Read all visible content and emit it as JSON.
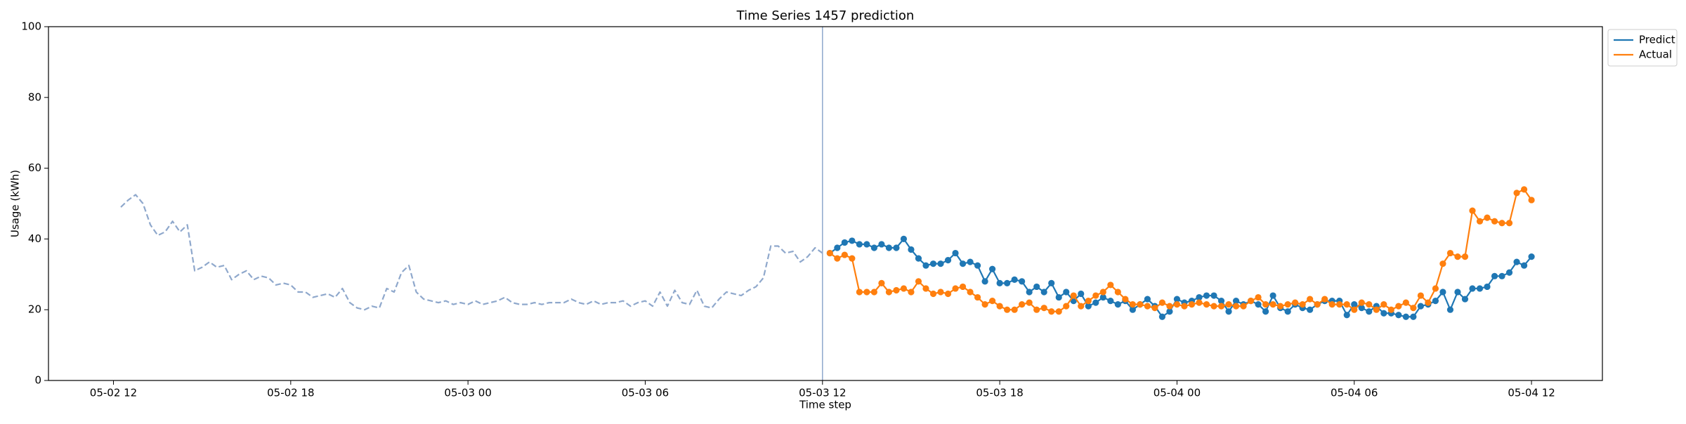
{
  "chart_data": {
    "type": "line",
    "title": "Time Series 1457 prediction",
    "x_label": "Time step",
    "y_label": "Usage (kWh)",
    "xlim": [
      9.8,
      62.4
    ],
    "xticks": [
      {
        "value": 12,
        "label": "05-02 12"
      },
      {
        "value": 18,
        "label": "05-02 18"
      },
      {
        "value": 24,
        "label": "05-03 00"
      },
      {
        "value": 30,
        "label": "05-03 06"
      },
      {
        "value": 36,
        "label": "05-03 12"
      },
      {
        "value": 42,
        "label": "05-03 18"
      },
      {
        "value": 48,
        "label": "05-04 00"
      },
      {
        "value": 54,
        "label": "05-04 06"
      },
      {
        "value": 60,
        "label": "05-04 12"
      }
    ],
    "ylim": [
      0,
      100
    ],
    "yticks": [
      0,
      20,
      40,
      60,
      80,
      100
    ],
    "grid": false,
    "vline": {
      "x": 36,
      "color": "#8fa8cc"
    },
    "legend": "outside-upper-right",
    "series": [
      {
        "color": "#8fa8cc",
        "style": "dashed",
        "markers": false,
        "x": [
          12.25,
          12.5,
          12.75,
          13,
          13.25,
          13.5,
          13.75,
          14,
          14.25,
          14.5,
          14.75,
          15,
          15.25,
          15.5,
          15.75,
          16,
          16.25,
          16.5,
          16.75,
          17,
          17.25,
          17.5,
          17.75,
          18,
          18.25,
          18.5,
          18.75,
          19,
          19.25,
          19.5,
          19.75,
          20,
          20.25,
          20.5,
          20.75,
          21,
          21.25,
          21.5,
          21.75,
          22,
          22.25,
          22.5,
          22.75,
          23,
          23.25,
          23.5,
          23.75,
          24,
          24.25,
          24.5,
          24.75,
          25,
          25.25,
          25.5,
          25.75,
          26,
          26.25,
          26.5,
          26.75,
          27,
          27.25,
          27.5,
          27.75,
          28,
          28.25,
          28.5,
          28.75,
          29,
          29.25,
          29.5,
          29.75,
          30,
          30.25,
          30.5,
          30.75,
          31,
          31.25,
          31.5,
          31.75,
          32,
          32.25,
          32.5,
          32.75,
          33,
          33.25,
          33.5,
          33.75,
          34,
          34.25,
          34.5,
          34.75,
          35,
          35.25,
          35.5,
          35.75,
          36
        ],
        "values": [
          49,
          51,
          52.5,
          50,
          44,
          41,
          42,
          45,
          42,
          44,
          31,
          32,
          33.5,
          32,
          32.5,
          28.5,
          30,
          31,
          28.5,
          29.5,
          29,
          27,
          27.5,
          27,
          25,
          25,
          23.5,
          24,
          24.5,
          23.5,
          26,
          22,
          20.5,
          20,
          21,
          20.5,
          26,
          25,
          30.5,
          32.5,
          25,
          23,
          22.5,
          22,
          22.5,
          21.5,
          22,
          21.5,
          22.5,
          21.5,
          22,
          22.5,
          23.5,
          22,
          21.5,
          21.5,
          22,
          21.5,
          22,
          22,
          22,
          23,
          22,
          21.5,
          22.5,
          21.5,
          22,
          22,
          22.5,
          21,
          22,
          22.5,
          21,
          25,
          21,
          25.5,
          22,
          21.5,
          25.5,
          21,
          20.5,
          23,
          25,
          24.5,
          24,
          25.5,
          26.5,
          29,
          38,
          38,
          36,
          36.5,
          33.5,
          35,
          37.5,
          36
        ]
      },
      {
        "name": "Predict",
        "color": "#1f77b4",
        "style": "solid",
        "markers": true,
        "x": [
          36.25,
          36.5,
          36.75,
          37,
          37.25,
          37.5,
          37.75,
          38,
          38.25,
          38.5,
          38.75,
          39,
          39.25,
          39.5,
          39.75,
          40,
          40.25,
          40.5,
          40.75,
          41,
          41.25,
          41.5,
          41.75,
          42,
          42.25,
          42.5,
          42.75,
          43,
          43.25,
          43.5,
          43.75,
          44,
          44.25,
          44.5,
          44.75,
          45,
          45.25,
          45.5,
          45.75,
          46,
          46.25,
          46.5,
          46.75,
          47,
          47.25,
          47.5,
          47.75,
          48,
          48.25,
          48.5,
          48.75,
          49,
          49.25,
          49.5,
          49.75,
          50,
          50.25,
          50.5,
          50.75,
          51,
          51.25,
          51.5,
          51.75,
          52,
          52.25,
          52.5,
          52.75,
          53,
          53.25,
          53.5,
          53.75,
          54,
          54.25,
          54.5,
          54.75,
          55,
          55.25,
          55.5,
          55.75,
          56,
          56.25,
          56.5,
          56.75,
          57,
          57.25,
          57.5,
          57.75,
          58,
          58.25,
          58.5,
          58.75,
          59,
          59.25,
          59.5,
          59.75,
          60
        ],
        "values": [
          36,
          37.5,
          39,
          39.5,
          38.5,
          38.5,
          37.5,
          38.5,
          37.5,
          37.5,
          40,
          37,
          34.5,
          32.5,
          33,
          33,
          34,
          36,
          33,
          33.5,
          32.5,
          28,
          31.5,
          27.5,
          27.5,
          28.5,
          28,
          25,
          26.5,
          25,
          27.5,
          23.5,
          25,
          22.5,
          24.5,
          21,
          22,
          23.5,
          22.5,
          21.5,
          22.5,
          20,
          21.5,
          23,
          21,
          18,
          19.5,
          23,
          22,
          22.5,
          23.5,
          24,
          24,
          22.5,
          19.5,
          22.5,
          21.5,
          22.5,
          21.5,
          19.5,
          24,
          20.5,
          19.5,
          21.5,
          20.5,
          20,
          21.5,
          22.5,
          22.5,
          22.5,
          18.5,
          21.5,
          20.5,
          19.5,
          21,
          19,
          19,
          18.5,
          18,
          18,
          21,
          21.5,
          22.5,
          25,
          20,
          25,
          23,
          26,
          26,
          26.5,
          29.5,
          29.5,
          30.5,
          33.5,
          32.5,
          35
        ]
      },
      {
        "name": "Actual",
        "color": "#ff7f0e",
        "style": "solid",
        "markers": true,
        "x": [
          36.25,
          36.5,
          36.75,
          37,
          37.25,
          37.5,
          37.75,
          38,
          38.25,
          38.5,
          38.75,
          39,
          39.25,
          39.5,
          39.75,
          40,
          40.25,
          40.5,
          40.75,
          41,
          41.25,
          41.5,
          41.75,
          42,
          42.25,
          42.5,
          42.75,
          43,
          43.25,
          43.5,
          43.75,
          44,
          44.25,
          44.5,
          44.75,
          45,
          45.25,
          45.5,
          45.75,
          46,
          46.25,
          46.5,
          46.75,
          47,
          47.25,
          47.5,
          47.75,
          48,
          48.25,
          48.5,
          48.75,
          49,
          49.25,
          49.5,
          49.75,
          50,
          50.25,
          50.5,
          50.75,
          51,
          51.25,
          51.5,
          51.75,
          52,
          52.25,
          52.5,
          52.75,
          53,
          53.25,
          53.5,
          53.75,
          54,
          54.25,
          54.5,
          54.75,
          55,
          55.25,
          55.5,
          55.75,
          56,
          56.25,
          56.5,
          56.75,
          57,
          57.25,
          57.5,
          57.75,
          58,
          58.25,
          58.5,
          58.75,
          59,
          59.25,
          59.5,
          59.75,
          60
        ],
        "values": [
          36,
          34.5,
          35.5,
          34.5,
          25,
          25,
          25,
          27.5,
          25,
          25.5,
          26,
          25,
          28,
          26,
          24.5,
          25,
          24.5,
          26,
          26.5,
          25,
          23.5,
          21.5,
          22.5,
          21,
          20,
          20,
          21.5,
          22,
          20,
          20.5,
          19.5,
          19.5,
          21,
          24,
          21,
          22.5,
          24,
          25,
          27,
          25,
          23,
          21.5,
          21.5,
          21,
          20.5,
          22,
          21,
          21.5,
          21,
          21.5,
          22,
          21.5,
          21,
          21,
          21.5,
          21,
          21,
          22.5,
          23.5,
          21.5,
          21.5,
          21,
          21.5,
          22,
          21.5,
          23,
          21.5,
          23,
          21.5,
          21.5,
          21.5,
          20,
          22,
          21.5,
          20,
          21.5,
          20,
          21,
          22,
          20.5,
          24,
          22,
          26,
          33,
          36,
          35,
          35,
          48,
          45,
          46,
          45,
          44.5,
          44.5,
          53,
          54,
          51
        ]
      }
    ]
  }
}
